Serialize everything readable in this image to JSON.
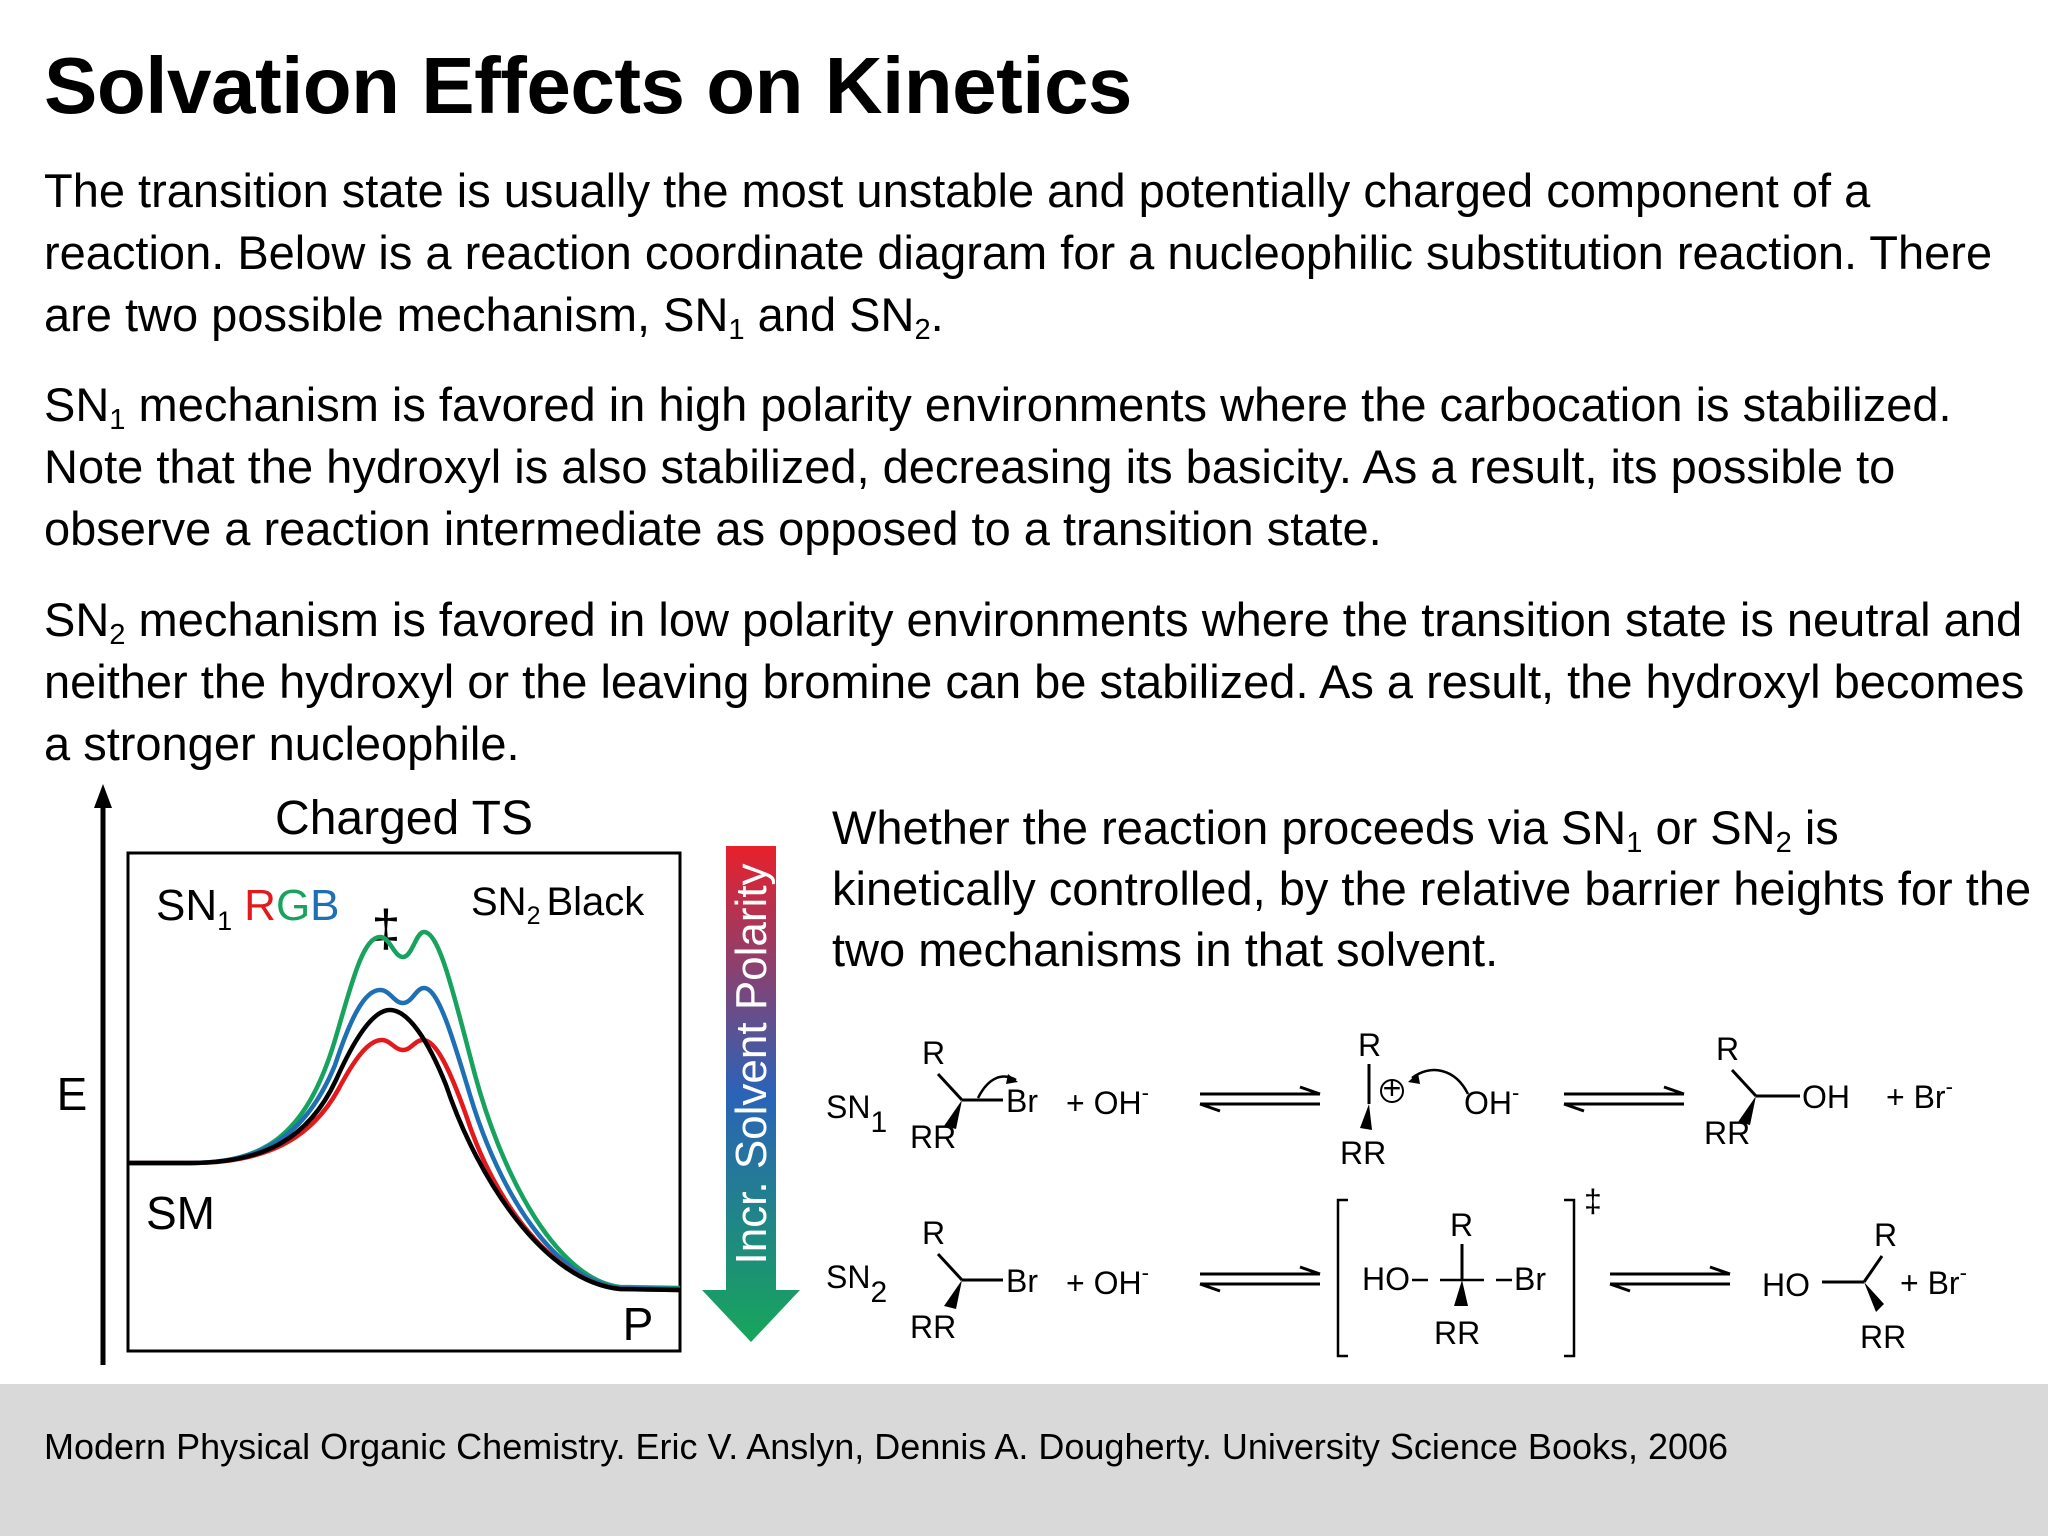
{
  "title": "Solvation Effects on Kinetics",
  "paragraphs": {
    "p1": {
      "text_a": "The transition state is usually the most unstable and potentially charged component of a reaction. Below is a reaction coordinate diagram for a nucleophilic substitution reaction. There are two possible mechanism, SN",
      "sub_a": "1",
      "text_b": " and SN",
      "sub_b": "2",
      "text_c": "."
    },
    "p2": {
      "text_a": "SN",
      "sub_a": "1",
      "text_b": " mechanism is favored in high polarity environments where the carbocation is stabilized. Note that the hydroxyl is also stabilized, decreasing its basicity. As a result, its possible to observe a reaction intermediate as opposed to a transition state."
    },
    "p3": {
      "text_a": "SN",
      "sub_a": "2",
      "text_b": " mechanism is favored in low polarity environments where the transition state is neutral and neither the hydroxyl or the leaving bromine can be stabilized. As a result, the hydroxyl becomes a stronger nucleophile."
    }
  },
  "side_text": {
    "text_a": "Whether the reaction proceeds via SN",
    "sub_a": "1",
    "text_b": " or SN",
    "sub_b": "2",
    "text_c": " is kinetically controlled, by the relative barrier heights for the two mechanisms in that solvent."
  },
  "energy_diagram": {
    "heading": "Charged TS",
    "y_axis_label": "E",
    "start_label": "SM",
    "end_label": "P",
    "sn1_label": "SN",
    "sn1_sub": "1",
    "sn1_colors_text": [
      "R",
      "G",
      "B"
    ],
    "sn2_label": "SN",
    "sn2_sub": "2",
    "sn2_color_text": "Black",
    "ts_symbol": "‡",
    "polarity_arrow_label": "Incr. Solvent Polarity",
    "colors": {
      "red": "#e3191c",
      "green": "#17a35d",
      "blue": "#1f6fb4",
      "black": "#000000",
      "arrow_top": "#e8202a",
      "arrow_mid": "#2a63b8",
      "arrow_bottom": "#17a659"
    },
    "curves": [
      {
        "name": "red",
        "shape": "double-peak",
        "relative_barrier": 0.66
      },
      {
        "name": "black",
        "shape": "single-peak",
        "relative_barrier": 0.77
      },
      {
        "name": "blue",
        "shape": "double-peak",
        "relative_barrier": 0.86
      },
      {
        "name": "green",
        "shape": "double-peak",
        "relative_barrier": 1.0
      }
    ]
  },
  "scheme": {
    "sn1_label": "SN",
    "sn1_sub": "1",
    "sn2_label": "SN",
    "sn2_sub": "2",
    "R": "R",
    "RR": "RR",
    "Br": "Br",
    "plus_OH": "+ OH",
    "minus": "-",
    "OH_ion": "OH",
    "OH": "OH",
    "HO": "HO",
    "plus_Br": "+  Br",
    "cation_plus": "+",
    "ts_symbol": "‡"
  },
  "citation": "Modern Physical Organic Chemistry. Eric V. Anslyn, Dennis A. Dougherty. University Science Books, 2006"
}
